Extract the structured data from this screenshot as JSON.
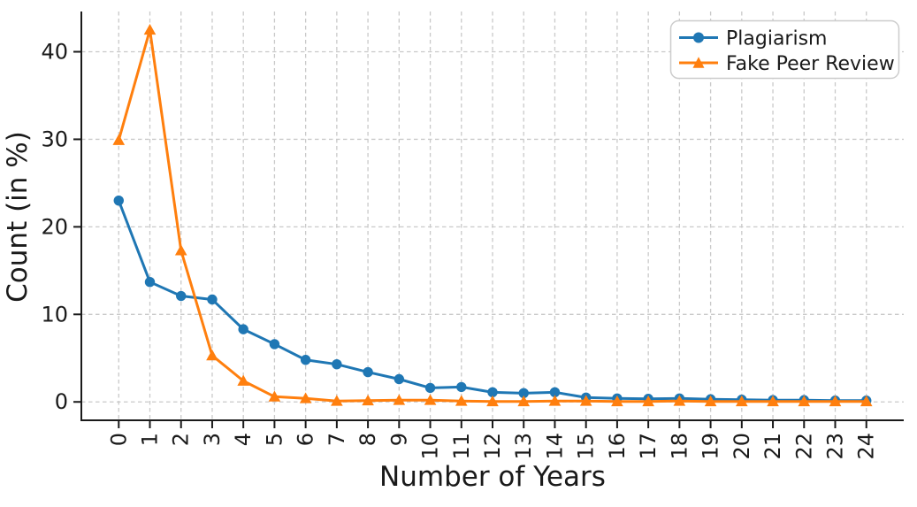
{
  "chart_data": {
    "type": "line",
    "title": "",
    "xlabel": "Number of Years",
    "ylabel": "Count (in %)",
    "categories": [
      "0",
      "1",
      "2",
      "3",
      "4",
      "5",
      "6",
      "7",
      "8",
      "9",
      "10",
      "11",
      "12",
      "13",
      "14",
      "15",
      "16",
      "17",
      "18",
      "19",
      "20",
      "21",
      "22",
      "23",
      "24"
    ],
    "series": [
      {
        "name": "Plagiarism",
        "color": "#1f77b4",
        "marker": "circle",
        "values": [
          23.0,
          13.7,
          12.1,
          11.7,
          8.3,
          6.6,
          4.8,
          4.3,
          3.4,
          2.6,
          1.6,
          1.7,
          1.1,
          1.0,
          1.1,
          0.5,
          0.4,
          0.35,
          0.4,
          0.3,
          0.25,
          0.2,
          0.2,
          0.15,
          0.15
        ]
      },
      {
        "name": "Fake Peer Review",
        "color": "#ff7f0e",
        "marker": "triangle-up",
        "values": [
          29.9,
          42.5,
          17.3,
          5.3,
          2.4,
          0.6,
          0.4,
          0.1,
          0.15,
          0.2,
          0.2,
          0.1,
          0.05,
          0.05,
          0.1,
          0.1,
          0.05,
          0.05,
          0.1,
          0.05,
          0.05,
          0.05,
          0.05,
          0.05,
          0.05
        ]
      }
    ],
    "yticks": [
      0,
      10,
      20,
      30,
      40
    ],
    "xlim": [
      -1.2,
      25.2
    ],
    "ylim": [
      -2.1,
      44.6
    ],
    "xtick_rotation": 90,
    "grid": "dashed-both-axes",
    "legend_position": "upper-right"
  },
  "style": {
    "grid_color": "#c9c9c9",
    "axis_color": "#1a1a1a",
    "legend_border_color": "#cccccc",
    "background_color": "#ffffff"
  }
}
